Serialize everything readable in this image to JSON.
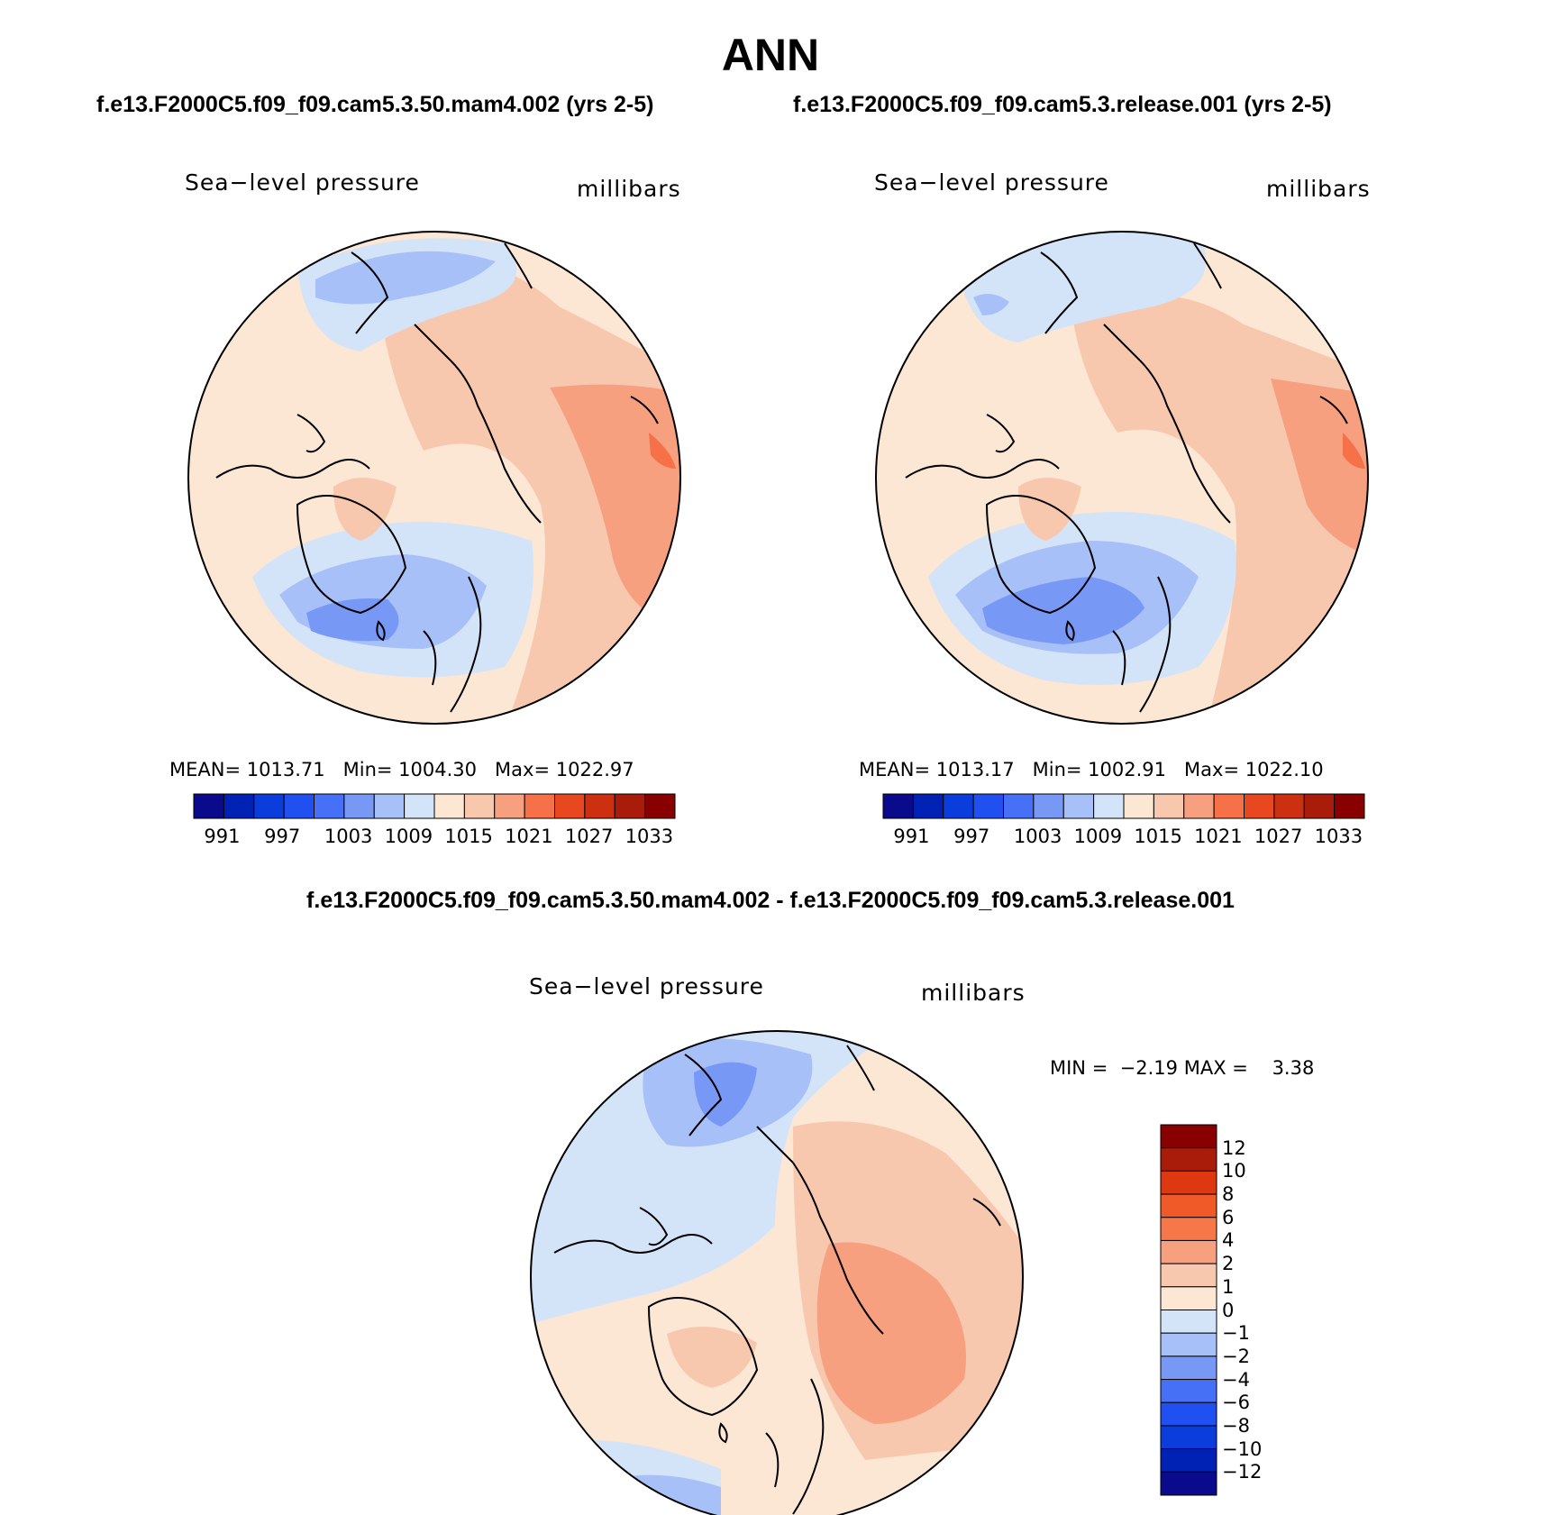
{
  "figure": {
    "season": "ANN",
    "case_left_title": "f.e13.F2000C5.f09_f09.cam5.3.50.mam4.002 (yrs 2-5)",
    "case_right_title": "f.e13.F2000C5.f09_f09.cam5.3.release.001 (yrs 2-5)",
    "diff_title": "f.e13.F2000C5.f09_f09.cam5.3.50.mam4.002 - f.e13.F2000C5.f09_f09.cam5.3.release.001"
  },
  "panels": [
    {
      "id": "left",
      "variable": "Sea−level pressure",
      "units": "millibars",
      "mean_label": "MEAN=",
      "mean": "1013.71",
      "min_label": "Min=",
      "min": "1004.30",
      "max_label": "Max=",
      "max": "1022.97"
    },
    {
      "id": "right",
      "variable": "Sea−level pressure",
      "units": "millibars",
      "mean_label": "MEAN=",
      "mean": "1013.17",
      "min_label": "Min=",
      "min": "1002.91",
      "max_label": "Max=",
      "max": "1022.10"
    },
    {
      "id": "diff",
      "variable": "Sea−level pressure",
      "units": "millibars",
      "min_label": "MIN =",
      "min": "−2.19",
      "max_label": "MAX =",
      "max": "3.38"
    }
  ],
  "colorbar_abs": {
    "tick_labels": [
      "991",
      "997",
      "1003",
      "1009",
      "1015",
      "1021",
      "1027",
      "1033"
    ],
    "colors": [
      "#0a0a8c",
      "#0022b4",
      "#0a3ddc",
      "#2050f0",
      "#4670f5",
      "#7898f5",
      "#a8c0f8",
      "#d4e4f8",
      "#fce6d4",
      "#f8c8ae",
      "#f7a080",
      "#f67048",
      "#e84820",
      "#cc3010",
      "#aa1c0a",
      "#880000"
    ]
  },
  "colorbar_diff": {
    "tick_labels": [
      "12",
      "10",
      "8",
      "6",
      "4",
      "2",
      "1",
      "0",
      "−1",
      "−2",
      "−4",
      "−6",
      "−8",
      "−10",
      "−12"
    ],
    "colors": [
      "#880000",
      "#aa1c0a",
      "#dd3810",
      "#f05a28",
      "#f67848",
      "#f7a080",
      "#f8c8ae",
      "#fce6d4",
      "#d4e4f8",
      "#a8c0f8",
      "#7898f5",
      "#4670f5",
      "#2050f0",
      "#0a3ddc",
      "#0022b4",
      "#0a0a8c"
    ]
  }
}
